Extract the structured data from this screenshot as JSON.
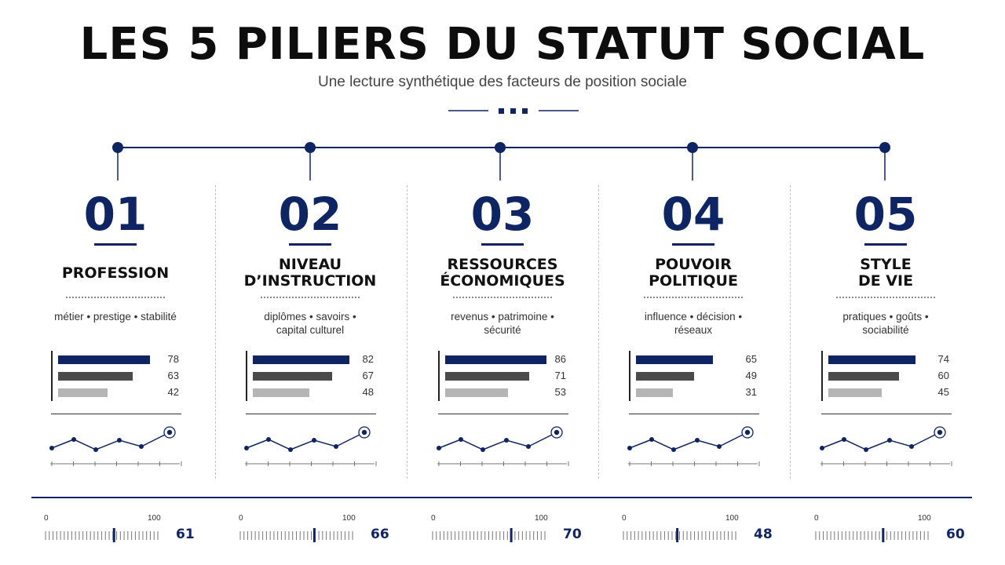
{
  "title": "LES 5 PILIERS DU STATUT SOCIAL",
  "subtitle": "Une lecture synthétique des facteurs de position sociale",
  "colors": {
    "navy": "#0f2462",
    "dark": "#4a4a4a",
    "light": "#b5b5b5"
  },
  "scale_min_label": "0",
  "scale_max_label": "100",
  "pillars": [
    {
      "number": "01",
      "label_lines": [
        "PROFESSION"
      ],
      "keyword_lines": [
        "métier • prestige • stabilité"
      ],
      "bar_values": [
        78,
        63,
        42
      ],
      "bar_labels": [
        "78",
        "63",
        "42"
      ],
      "score": 61,
      "score_label": "61"
    },
    {
      "number": "02",
      "label_lines": [
        "NIVEAU",
        "D’INSTRUCTION"
      ],
      "keyword_lines": [
        "diplômes • savoirs •",
        "capital culturel"
      ],
      "bar_values": [
        82,
        67,
        48
      ],
      "bar_labels": [
        "82",
        "67",
        "48"
      ],
      "score": 66,
      "score_label": "66"
    },
    {
      "number": "03",
      "label_lines": [
        "RESSOURCES",
        "ÉCONOMIQUES"
      ],
      "keyword_lines": [
        "revenus • patrimoine •",
        "sécurité"
      ],
      "bar_values": [
        86,
        71,
        53
      ],
      "bar_labels": [
        "86",
        "71",
        "53"
      ],
      "score": 70,
      "score_label": "70"
    },
    {
      "number": "04",
      "label_lines": [
        "POUVOIR",
        "POLITIQUE"
      ],
      "keyword_lines": [
        "influence • décision •",
        "réseaux"
      ],
      "bar_values": [
        65,
        49,
        31
      ],
      "bar_labels": [
        "65",
        "49",
        "31"
      ],
      "score": 48,
      "score_label": "48"
    },
    {
      "number": "05",
      "label_lines": [
        "STYLE",
        "DE VIE"
      ],
      "keyword_lines": [
        "pratiques • goûts •",
        "sociabilité"
      ],
      "bar_values": [
        74,
        60,
        45
      ],
      "bar_labels": [
        "74",
        "60",
        "45"
      ],
      "score": 60,
      "score_label": "60"
    }
  ]
}
